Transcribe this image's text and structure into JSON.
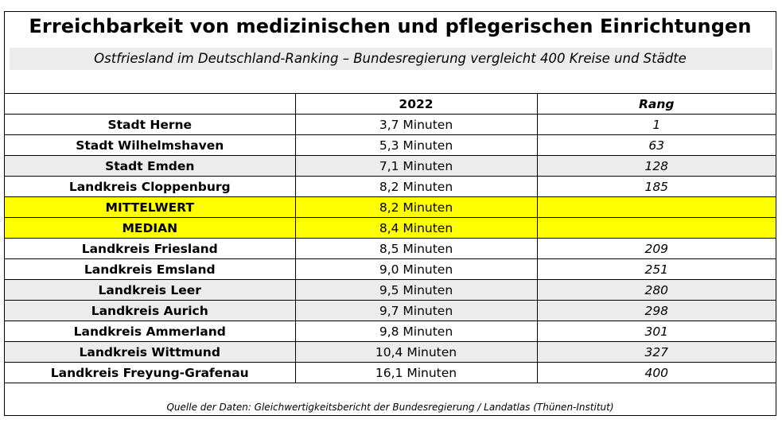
{
  "title": "Erreichbarkeit von medizinischen und pflegerischen Einrichtungen",
  "subtitle": "Ostfriesland im Deutschland-Ranking – Bundesregierung vergleicht 400 Kreise und Städte",
  "table": {
    "headers": [
      "",
      "2022",
      "Rang"
    ],
    "rows": [
      {
        "name": "Stadt Herne",
        "time": "3,7 Minuten",
        "rank": "1",
        "style": "white"
      },
      {
        "name": "Stadt Wilhelmshaven",
        "time": "5,3 Minuten",
        "rank": "63",
        "style": "white"
      },
      {
        "name": "Stadt Emden",
        "time": "7,1 Minuten",
        "rank": "128",
        "style": "gray"
      },
      {
        "name": "Landkreis Cloppenburg",
        "time": "8,2 Minuten",
        "rank": "185",
        "style": "white"
      },
      {
        "name": "MITTELWERT",
        "time": "8,2 Minuten",
        "rank": "",
        "style": "yellow"
      },
      {
        "name": "MEDIAN",
        "time": "8,4 Minuten",
        "rank": "",
        "style": "yellow"
      },
      {
        "name": "Landkreis Friesland",
        "time": "8,5 Minuten",
        "rank": "209",
        "style": "white"
      },
      {
        "name": "Landkreis Emsland",
        "time": "9,0 Minuten",
        "rank": "251",
        "style": "white"
      },
      {
        "name": "Landkreis Leer",
        "time": "9,5 Minuten",
        "rank": "280",
        "style": "gray"
      },
      {
        "name": "Landkreis Aurich",
        "time": "9,7 Minuten",
        "rank": "298",
        "style": "gray"
      },
      {
        "name": "Landkreis Ammerland",
        "time": "9,8 Minuten",
        "rank": "301",
        "style": "white"
      },
      {
        "name": "Landkreis Wittmund",
        "time": "10,4 Minuten",
        "rank": "327",
        "style": "gray"
      },
      {
        "name": "Landkreis Freyung-Grafenau",
        "time": "16,1 Minuten",
        "rank": "400",
        "style": "white"
      }
    ]
  },
  "source": "Quelle der Daten: Gleichwertigkeitsbericht der Bundesregierung / Landatlas (Thünen-Institut)",
  "colors": {
    "highlight": "#ffff00",
    "band": "#ececec",
    "border": "#000000"
  }
}
